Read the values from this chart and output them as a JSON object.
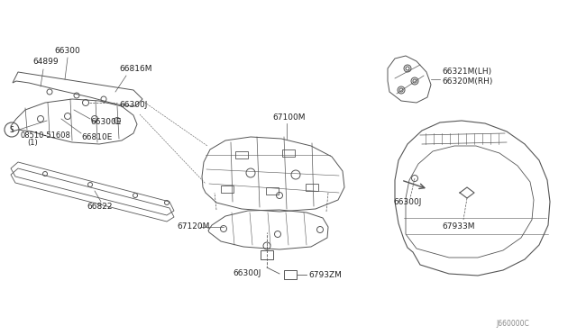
{
  "title": "",
  "bg_color": "#ffffff",
  "diagram_code": "J660000C",
  "line_color": "#555555",
  "text_color": "#222222",
  "font_size": 6.5,
  "parts_labels": {
    "66300J_top": "66300J",
    "6793ZM": "6793ZM",
    "67933M": "67933M",
    "67120M": "67120M",
    "67100M": "67100M",
    "66822": "66822",
    "08510": "08510-51608",
    "08510_sub": "(1)",
    "66810E": "66810E",
    "66300E": "66300E",
    "66300J_left": "66300J",
    "66300": "66300",
    "64899": "64899",
    "66816M": "66816M",
    "66300J_car": "66300J",
    "66320M": "66320M(RH)",
    "66321M": "66321M(LH)",
    "diag_code": "J660000C"
  }
}
